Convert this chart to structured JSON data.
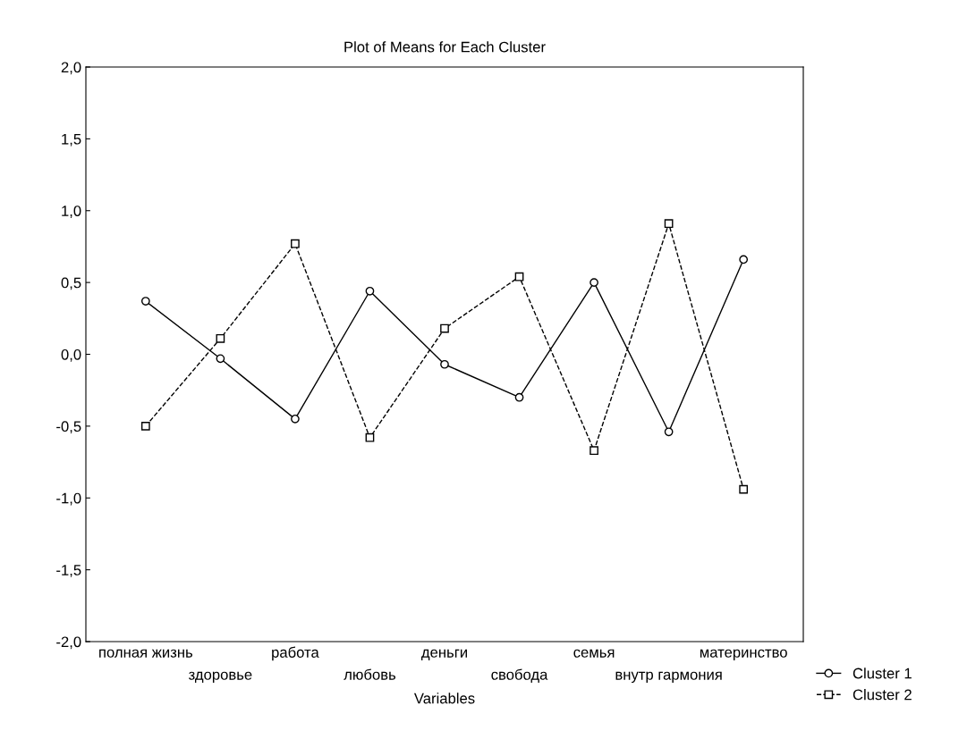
{
  "chart_data": {
    "type": "line",
    "title": "Plot of Means for Each Cluster",
    "xlabel": "Variables",
    "categories": [
      "полная жизнь",
      "здоровье",
      "работа",
      "любовь",
      "деньги",
      "свобода",
      "семья",
      "внутр гармония",
      "материнство"
    ],
    "series": [
      {
        "name": "Cluster 1",
        "color": "#000000",
        "marker": "circle",
        "line_style": "solid",
        "values": [
          0.37,
          -0.03,
          -0.45,
          0.44,
          -0.07,
          -0.3,
          0.5,
          -0.54,
          0.66
        ]
      },
      {
        "name": "Cluster 2",
        "color": "#000000",
        "marker": "square",
        "line_style": "dashed",
        "values": [
          -0.5,
          0.11,
          0.77,
          -0.58,
          0.18,
          0.54,
          -0.67,
          0.91,
          -0.94
        ]
      }
    ],
    "ylim": [
      -2,
      2
    ],
    "yticks": [
      {
        "value": -2,
        "label": "-2,0"
      },
      {
        "value": -1.5,
        "label": "-1,5"
      },
      {
        "value": -1,
        "label": "-1,0"
      },
      {
        "value": -0.5,
        "label": "-0,5"
      },
      {
        "value": 0,
        "label": "0,0"
      },
      {
        "value": 0.5,
        "label": "0,5"
      },
      {
        "value": 1,
        "label": "1,0"
      },
      {
        "value": 1.5,
        "label": "1,5"
      },
      {
        "value": 2,
        "label": "2,0"
      }
    ],
    "grid": false,
    "legend": "bottom right"
  }
}
